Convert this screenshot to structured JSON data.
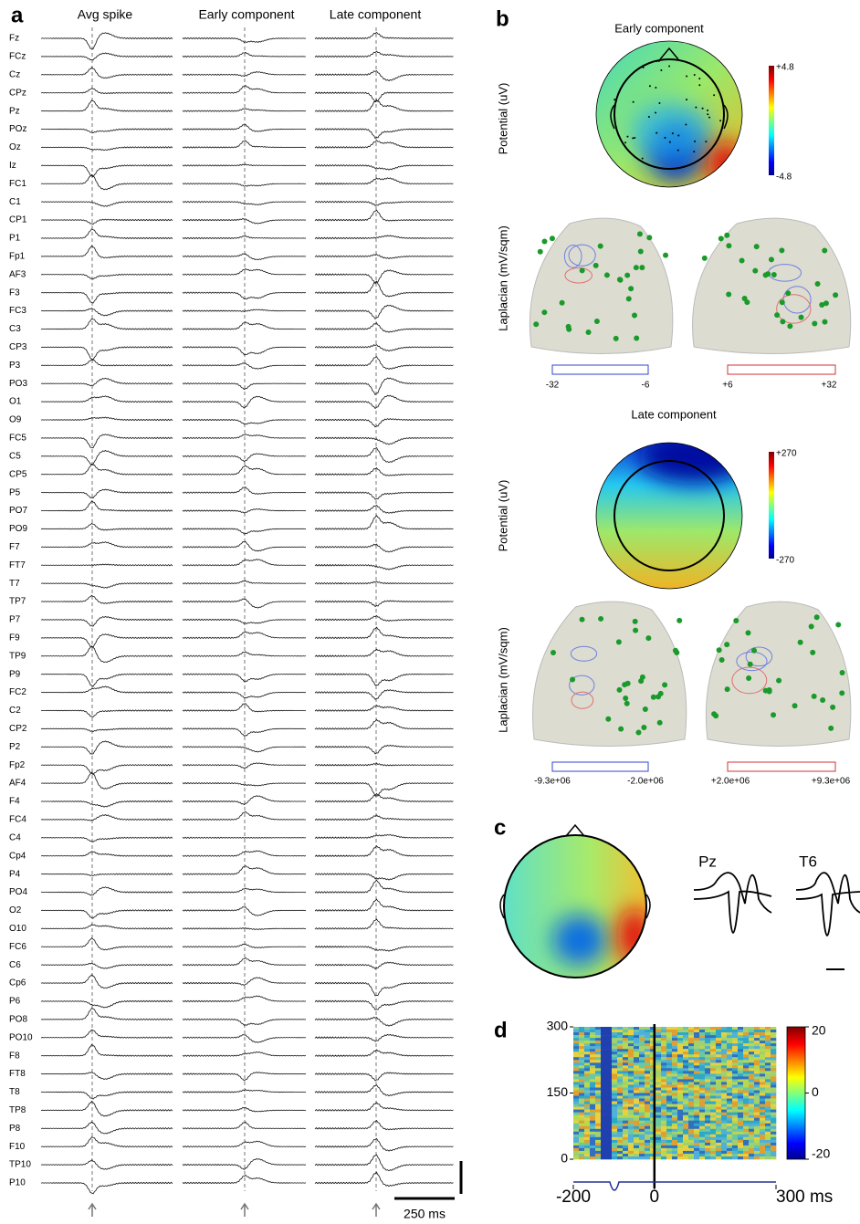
{
  "panel_labels": [
    "a",
    "b",
    "c",
    "d"
  ],
  "panel_a": {
    "columns": [
      "Avg spike",
      "Early component",
      "Late component"
    ],
    "channels": [
      "Fz",
      "FCz",
      "Cz",
      "CPz",
      "Pz",
      "POz",
      "Oz",
      "Iz",
      "FC1",
      "C1",
      "CP1",
      "P1",
      "Fp1",
      "AF3",
      "F3",
      "FC3",
      "C3",
      "CP3",
      "P3",
      "PO3",
      "O1",
      "O9",
      "FC5",
      "C5",
      "CP5",
      "P5",
      "PO7",
      "PO9",
      "F7",
      "FT7",
      "T7",
      "TP7",
      "P7",
      "F9",
      "TP9",
      "P9",
      "FC2",
      "C2",
      "CP2",
      "P2",
      "Fp2",
      "AF4",
      "F4",
      "FC4",
      "C4",
      "Cp4",
      "P4",
      "PO4",
      "O2",
      "O10",
      "FC6",
      "C6",
      "Cp6",
      "P6",
      "PO8",
      "PO10",
      "F8",
      "FT8",
      "T8",
      "TP8",
      "P8",
      "F10",
      "TP10",
      "P10"
    ],
    "scale_bar": "250 ms"
  },
  "panel_b": {
    "early": {
      "title": "Early component",
      "potential_label": "Potential (uV)",
      "colorbar": [
        "+4.8",
        "-4.8"
      ],
      "laplacian_label": "Laplacian (mV/sqm)",
      "neg_scale": [
        "-32",
        "-6"
      ],
      "pos_scale": [
        "+6",
        "+32"
      ]
    },
    "late": {
      "title": "Late component",
      "potential_label": "Potential (uV)",
      "colorbar": [
        "+270",
        "-270"
      ],
      "laplacian_label": "Laplacian (mV/sqm)",
      "neg_scale": [
        "-9.3e+06",
        "-2.0e+06"
      ],
      "pos_scale": [
        "+2.0e+06",
        "+9.3e+06"
      ]
    }
  },
  "panel_c": {
    "traces": [
      "Pz",
      "T6"
    ]
  },
  "panel_d": {
    "xlim": [
      -200,
      300
    ],
    "xticks": [
      -200,
      0,
      {
        "value": 300,
        "label": "300 ms"
      }
    ],
    "ylim": [
      0,
      300
    ],
    "yticks": [
      0,
      150,
      300
    ],
    "clim": [
      -20,
      20
    ],
    "cticks": [
      20,
      0,
      -20
    ]
  }
}
